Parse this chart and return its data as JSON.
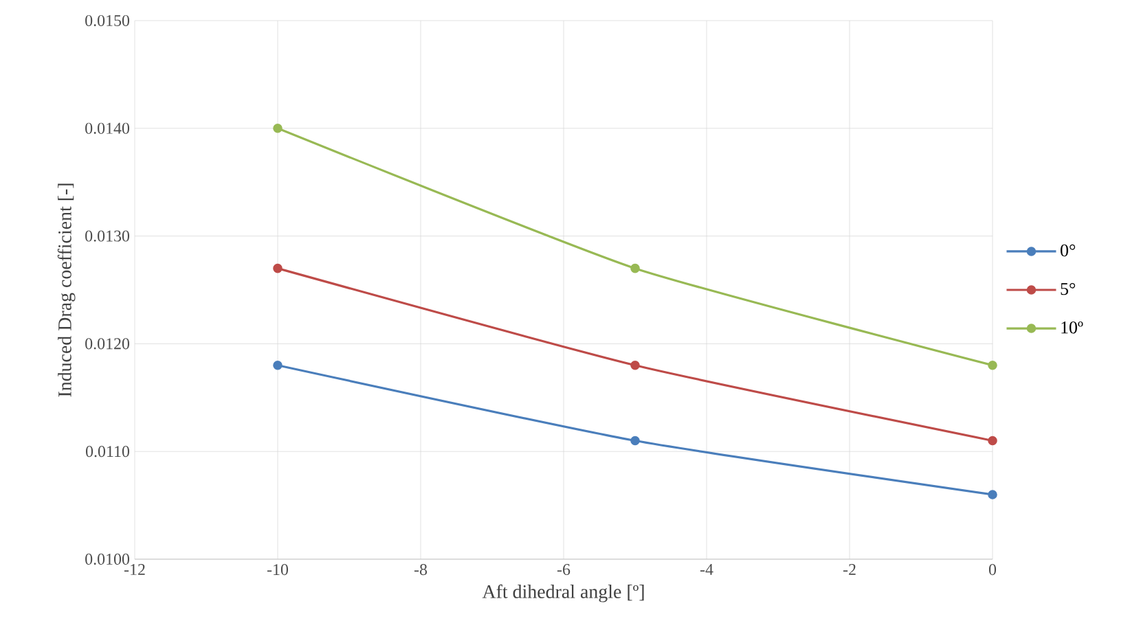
{
  "chart_data": {
    "type": "line",
    "xlabel": "Aft dihedral angle [º]",
    "ylabel": "Induced Drag coefficient [-]",
    "x": [
      -10,
      -5,
      0
    ],
    "series": [
      {
        "name": "0°",
        "color": "#4a7ebb",
        "values": [
          0.0118,
          0.0111,
          0.0106
        ]
      },
      {
        "name": "5°",
        "color": "#be4b48",
        "values": [
          0.0127,
          0.0118,
          0.0111
        ]
      },
      {
        "name": "10º",
        "color": "#98b954",
        "values": [
          0.014,
          0.0127,
          0.0118
        ]
      }
    ],
    "xlim": [
      -12,
      0
    ],
    "xticks": [
      -12,
      -10,
      -8,
      -6,
      -4,
      -2,
      0
    ],
    "ylim": [
      0.01,
      0.015
    ],
    "yticks": [
      {
        "value": 0.01,
        "label": "0.0100"
      },
      {
        "value": 0.011,
        "label": "0.0110"
      },
      {
        "value": 0.012,
        "label": "0.0120"
      },
      {
        "value": 0.013,
        "label": "0.0130"
      },
      {
        "value": 0.014,
        "label": "0.0140"
      },
      {
        "value": 0.015,
        "label": "0.0150"
      }
    ],
    "grid": true,
    "legend": "right",
    "marker": "circle",
    "line_style": "solid"
  }
}
